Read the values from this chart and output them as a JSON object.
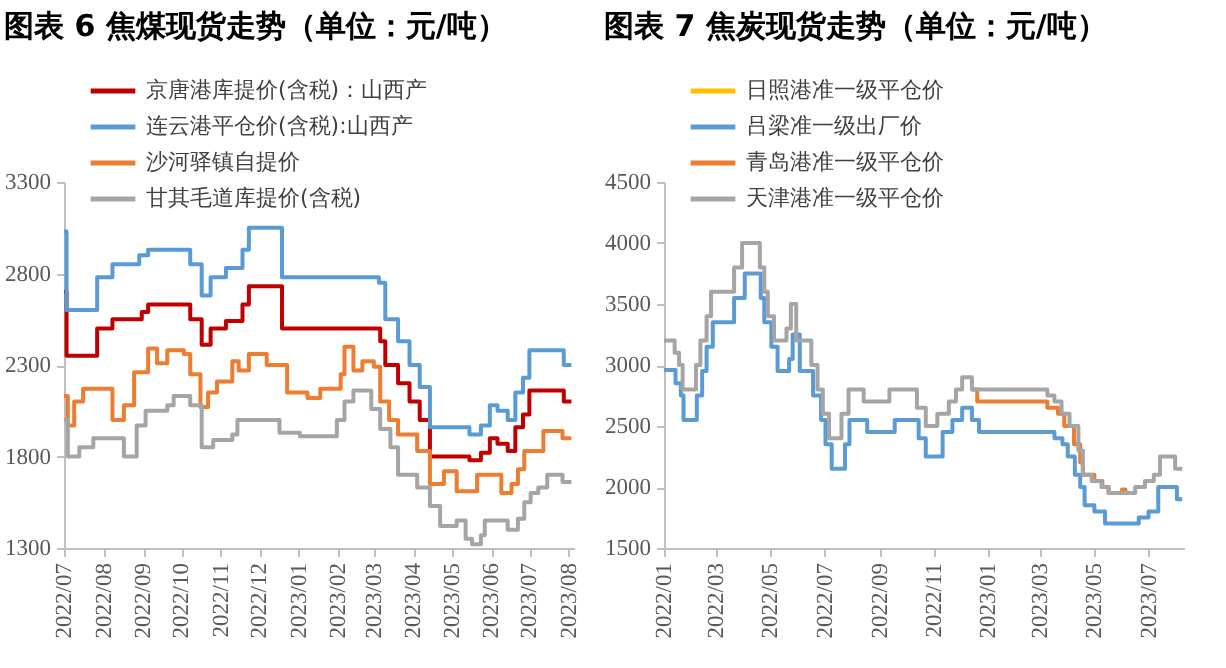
{
  "chart_data": [
    {
      "type": "step",
      "title": "图表 6   焦煤现货走势（单位：元/吨）",
      "legend": "top left",
      "grid": false,
      "xlim": [
        "2022-07-01",
        "2023-08-05"
      ],
      "xticks": [
        {
          "value": "2022-07-01",
          "label": "2022/07"
        },
        {
          "value": "2022-08-01",
          "label": "2022/08"
        },
        {
          "value": "2022-09-01",
          "label": "2022/09"
        },
        {
          "value": "2022-10-01",
          "label": "2022/10"
        },
        {
          "value": "2022-11-01",
          "label": "2022/11"
        },
        {
          "value": "2022-12-01",
          "label": "2022/12"
        },
        {
          "value": "2023-01-01",
          "label": "2023/01"
        },
        {
          "value": "2023-02-01",
          "label": "2023/02"
        },
        {
          "value": "2023-03-01",
          "label": "2023/03"
        },
        {
          "value": "2023-04-01",
          "label": "2023/04"
        },
        {
          "value": "2023-05-01",
          "label": "2023/05"
        },
        {
          "value": "2023-06-01",
          "label": "2023/06"
        },
        {
          "value": "2023-07-01",
          "label": "2023/07"
        },
        {
          "value": "2023-08-01",
          "label": "2023/08"
        }
      ],
      "ylim": [
        1300,
        3300
      ],
      "yticks": [
        1300,
        1800,
        2300,
        2800,
        3300
      ],
      "series": [
        {
          "name": "京唐港库提价(含税)：山西产",
          "color": "#c00000",
          "x": [
            "2022-07-01",
            "2022-07-03",
            "2022-07-27",
            "2022-08-08",
            "2022-08-31",
            "2022-09-05",
            "2022-10-08",
            "2022-10-17",
            "2022-10-24",
            "2022-11-05",
            "2022-11-18",
            "2022-11-23",
            "2022-12-19",
            "2023-03-06",
            "2023-03-10",
            "2023-03-20",
            "2023-03-29",
            "2023-04-06",
            "2023-04-14",
            "2023-05-15",
            "2023-05-24",
            "2023-05-31",
            "2023-06-06",
            "2023-06-14",
            "2023-06-20",
            "2023-06-26",
            "2023-07-01",
            "2023-07-28",
            "2023-08-03"
          ],
          "values": [
            2700,
            2350,
            2500,
            2550,
            2590,
            2630,
            2550,
            2410,
            2500,
            2540,
            2630,
            2730,
            2500,
            2430,
            2300,
            2200,
            2100,
            2000,
            1800,
            1780,
            1820,
            1900,
            1870,
            1830,
            1960,
            2030,
            2160,
            2100,
            2100
          ]
        },
        {
          "name": "连云港平仓价(含税):山西产",
          "color": "#5b9bd5",
          "x": [
            "2022-07-01",
            "2022-07-03",
            "2022-07-27",
            "2022-08-08",
            "2022-08-29",
            "2022-09-05",
            "2022-10-08",
            "2022-10-17",
            "2022-10-24",
            "2022-11-05",
            "2022-11-18",
            "2022-11-23",
            "2022-12-19",
            "2023-03-05",
            "2023-03-10",
            "2023-03-20",
            "2023-03-29",
            "2023-04-06",
            "2023-04-14",
            "2023-05-15",
            "2023-05-24",
            "2023-05-31",
            "2023-06-06",
            "2023-06-14",
            "2023-06-20",
            "2023-06-26",
            "2023-07-01",
            "2023-07-28",
            "2023-08-03"
          ],
          "values": [
            3030,
            2600,
            2780,
            2850,
            2900,
            2930,
            2850,
            2680,
            2780,
            2830,
            2930,
            3050,
            2780,
            2750,
            2550,
            2430,
            2300,
            2180,
            1960,
            1920,
            1970,
            2080,
            2050,
            2000,
            2150,
            2230,
            2380,
            2300,
            2300
          ]
        },
        {
          "name": "沙河驿镇自提价",
          "color": "#ed7d31",
          "x": [
            "2022-07-01",
            "2022-07-04",
            "2022-07-09",
            "2022-07-16",
            "2022-08-08",
            "2022-08-17",
            "2022-08-25",
            "2022-09-05",
            "2022-09-12",
            "2022-09-20",
            "2022-10-03",
            "2022-10-08",
            "2022-10-16",
            "2022-10-22",
            "2022-10-29",
            "2022-11-10",
            "2022-11-15",
            "2022-11-23",
            "2022-12-07",
            "2022-12-23",
            "2023-01-08",
            "2023-01-18",
            "2023-02-03",
            "2023-02-06",
            "2023-02-13",
            "2023-02-20",
            "2023-03-01",
            "2023-03-06",
            "2023-03-13",
            "2023-03-20",
            "2023-04-04",
            "2023-04-14",
            "2023-04-25",
            "2023-05-05",
            "2023-05-21",
            "2023-06-09",
            "2023-06-17",
            "2023-06-22",
            "2023-06-27",
            "2023-07-12",
            "2023-07-27",
            "2023-08-03"
          ],
          "values": [
            2130,
            1970,
            2100,
            2170,
            2000,
            2080,
            2260,
            2390,
            2310,
            2380,
            2360,
            2250,
            2070,
            2150,
            2210,
            2320,
            2270,
            2360,
            2300,
            2150,
            2120,
            2170,
            2250,
            2400,
            2270,
            2320,
            2290,
            2100,
            2000,
            1920,
            1830,
            1650,
            1720,
            1610,
            1700,
            1600,
            1650,
            1730,
            1830,
            1940,
            1900,
            1900
          ]
        },
        {
          "name": "甘其毛道库提价(含税)",
          "color": "#a5a5a5",
          "x": [
            "2022-07-01",
            "2022-07-04",
            "2022-07-13",
            "2022-07-24",
            "2022-08-17",
            "2022-08-27",
            "2022-09-03",
            "2022-09-20",
            "2022-09-25",
            "2022-10-08",
            "2022-10-17",
            "2022-10-26",
            "2022-11-10",
            "2022-11-14",
            "2022-12-17",
            "2023-01-02",
            "2023-01-31",
            "2023-02-06",
            "2023-02-13",
            "2023-02-27",
            "2023-03-06",
            "2023-03-14",
            "2023-03-20",
            "2023-04-04",
            "2023-04-14",
            "2023-04-22",
            "2023-05-05",
            "2023-05-12",
            "2023-05-17",
            "2023-05-24",
            "2023-05-27",
            "2023-06-14",
            "2023-06-22",
            "2023-06-27",
            "2023-07-02",
            "2023-07-08",
            "2023-07-15",
            "2023-07-27",
            "2023-08-03"
          ],
          "values": [
            2000,
            1800,
            1850,
            1900,
            1800,
            1970,
            2050,
            2080,
            2130,
            2080,
            1850,
            1890,
            1920,
            2000,
            1930,
            1910,
            2000,
            2100,
            2160,
            2060,
            1950,
            1850,
            1700,
            1630,
            1530,
            1420,
            1450,
            1350,
            1320,
            1370,
            1450,
            1400,
            1460,
            1550,
            1600,
            1630,
            1700,
            1660,
            1660
          ]
        }
      ]
    },
    {
      "type": "step",
      "title": "图表 7   焦炭现货走势（单位：元/吨）",
      "legend": "top left",
      "grid": false,
      "xlim": [
        "2022-01-01",
        "2023-08-10"
      ],
      "xticks": [
        {
          "value": "2022-01-01",
          "label": "2022/01"
        },
        {
          "value": "2022-03-01",
          "label": "2022/03"
        },
        {
          "value": "2022-05-01",
          "label": "2022/05"
        },
        {
          "value": "2022-07-01",
          "label": "2022/07"
        },
        {
          "value": "2022-09-01",
          "label": "2022/09"
        },
        {
          "value": "2022-11-01",
          "label": "2022/11"
        },
        {
          "value": "2023-01-01",
          "label": "2023/01"
        },
        {
          "value": "2023-03-01",
          "label": "2023/03"
        },
        {
          "value": "2023-05-01",
          "label": "2023/05"
        },
        {
          "value": "2023-07-01",
          "label": "2023/07"
        }
      ],
      "ylim": [
        1500,
        4500
      ],
      "yticks": [
        1500,
        2000,
        2500,
        3000,
        3500,
        4000,
        4500
      ],
      "series": [
        {
          "name": "日照港准一级平仓价",
          "color": "#ffc000"
        },
        {
          "name": "吕梁准一级出厂价",
          "color": "#5b9bd5",
          "x": [
            "2022-01-01",
            "2022-01-14",
            "2022-01-20",
            "2022-01-23",
            "2022-02-07",
            "2022-02-13",
            "2022-02-18",
            "2022-02-25",
            "2022-03-21",
            "2022-04-02",
            "2022-04-20",
            "2022-04-24",
            "2022-05-02",
            "2022-05-09",
            "2022-05-22",
            "2022-05-26",
            "2022-06-03",
            "2022-06-18",
            "2022-06-27",
            "2022-07-02",
            "2022-07-09",
            "2022-07-24",
            "2022-07-29",
            "2022-08-18",
            "2022-09-18",
            "2022-10-15",
            "2022-10-23",
            "2022-11-11",
            "2022-11-22",
            "2022-12-03",
            "2022-12-14",
            "2022-12-22",
            "2023-03-17",
            "2023-03-26",
            "2023-04-01",
            "2023-04-09",
            "2023-04-15",
            "2023-04-20",
            "2023-05-01",
            "2023-05-13",
            "2023-06-20",
            "2023-07-01",
            "2023-07-12",
            "2023-08-02",
            "2023-08-08"
          ],
          "values": [
            2960,
            2850,
            2750,
            2550,
            2750,
            2950,
            3150,
            3350,
            3550,
            3750,
            3550,
            3350,
            3150,
            2950,
            3050,
            3250,
            2950,
            2750,
            2550,
            2350,
            2150,
            2350,
            2550,
            2450,
            2550,
            2400,
            2250,
            2450,
            2550,
            2650,
            2550,
            2450,
            2400,
            2350,
            2250,
            2100,
            2000,
            1850,
            1800,
            1700,
            1750,
            1800,
            2000,
            1900,
            1900
          ]
        },
        {
          "name": "青岛港准一级平仓价",
          "color": "#ed7d31",
          "x": [
            "2022-12-14",
            "2022-12-20",
            "2023-03-09",
            "2023-03-21",
            "2023-03-28",
            "2023-04-08",
            "2023-04-15",
            "2023-04-18",
            "2023-05-01",
            "2023-05-10",
            "2023-05-17",
            "2023-06-01",
            "2023-06-05"
          ],
          "values": [
            2800,
            2700,
            2650,
            2600,
            2500,
            2350,
            2200,
            2100,
            2050,
            2000,
            1950,
            1980,
            1950
          ]
        },
        {
          "name": "天津港准一级平仓价",
          "color": "#a5a5a5",
          "x": [
            "2022-01-01",
            "2022-01-13",
            "2022-01-18",
            "2022-01-22",
            "2022-02-06",
            "2022-02-11",
            "2022-02-18",
            "2022-02-23",
            "2022-03-21",
            "2022-03-30",
            "2022-04-19",
            "2022-04-24",
            "2022-04-28",
            "2022-05-05",
            "2022-05-19",
            "2022-05-24",
            "2022-05-30",
            "2022-06-16",
            "2022-06-23",
            "2022-06-29",
            "2022-07-06",
            "2022-07-20",
            "2022-07-28",
            "2022-08-14",
            "2022-09-12",
            "2022-10-13",
            "2022-10-23",
            "2022-11-05",
            "2022-11-18",
            "2022-11-26",
            "2022-12-03",
            "2022-12-14",
            "2023-03-09",
            "2023-03-17",
            "2023-03-25",
            "2023-04-03",
            "2023-04-13",
            "2023-04-18",
            "2023-04-28",
            "2023-05-09",
            "2023-05-17",
            "2023-06-16",
            "2023-06-27",
            "2023-07-07",
            "2023-07-14",
            "2023-07-31",
            "2023-08-08"
          ],
          "values": [
            3200,
            3100,
            3000,
            2800,
            3000,
            3200,
            3400,
            3600,
            3800,
            4000,
            3800,
            3600,
            3400,
            3200,
            3300,
            3500,
            3200,
            3000,
            2800,
            2600,
            2400,
            2600,
            2800,
            2700,
            2800,
            2650,
            2500,
            2600,
            2700,
            2800,
            2900,
            2800,
            2750,
            2700,
            2600,
            2500,
            2300,
            2100,
            2050,
            2000,
            1950,
            2000,
            2050,
            2100,
            2250,
            2150,
            2150
          ]
        }
      ]
    }
  ]
}
